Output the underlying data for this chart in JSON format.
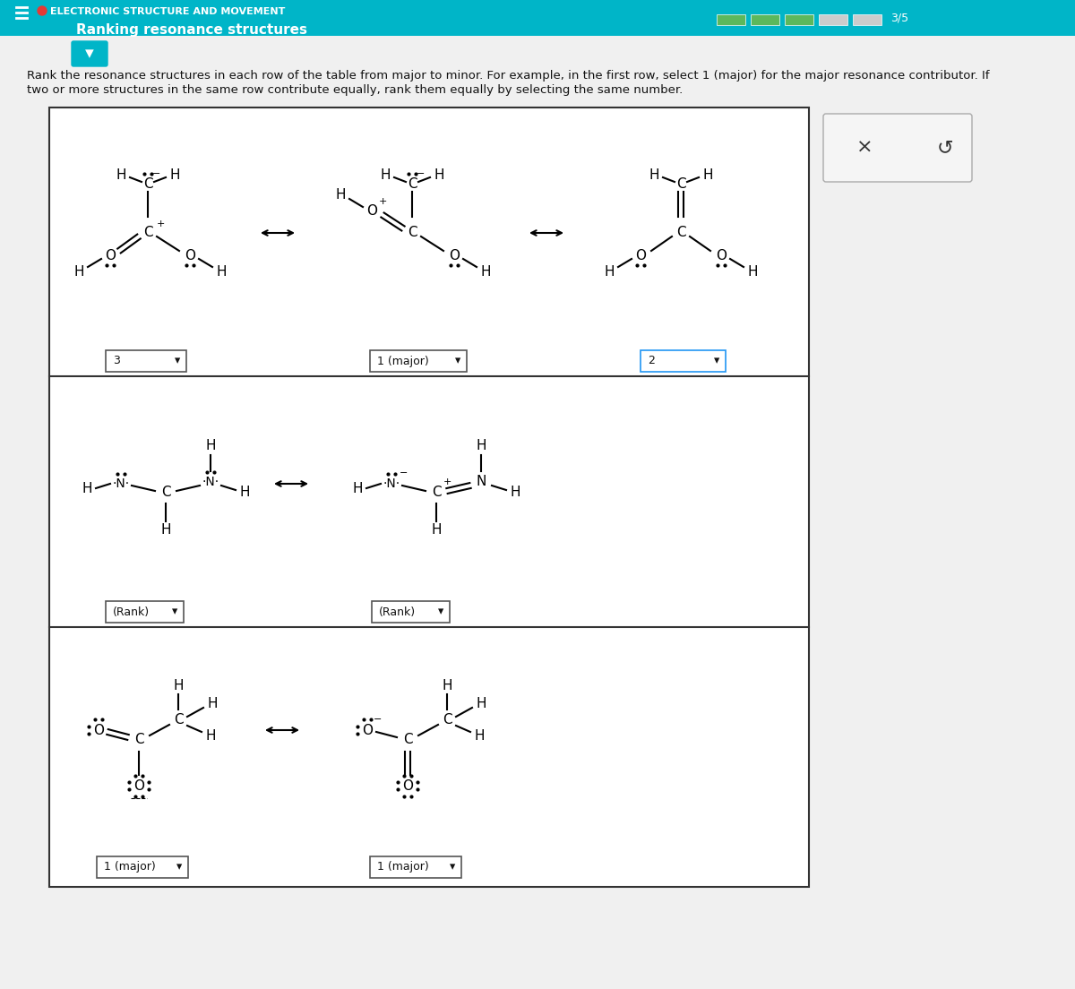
{
  "title_bar_color": "#00b5c8",
  "title_text": "ELECTRONIC STRUCTURE AND MOVEMENT",
  "subtitle_text": "Ranking resonance structures",
  "bg_color": "#ffffff",
  "table_bg": "#ffffff",
  "table_border": "#333333",
  "instruction_text": "Rank the resonance structures in each row of the table from major to minor. For example, in the first row, select 1 (major) for the major resonance contributor. If\ntwo or more structures in the same row contribute equally, rank them equally by selecting the same number.",
  "progress_text": "3/5",
  "row1_dropdowns": [
    "3",
    "1 (major)",
    "2"
  ],
  "row2_dropdowns": [
    "(Rank)",
    "(Rank)"
  ],
  "row3_dropdowns": [
    "1 (major)",
    "1 (major)"
  ]
}
